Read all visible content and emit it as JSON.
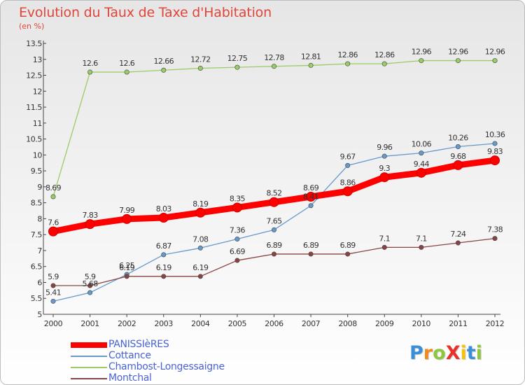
{
  "header": {
    "title": "Evolution du Taux de Taxe d'Habitation",
    "subtitle": "(en %)"
  },
  "logo": {
    "text": "ProXiti",
    "letter_colors": [
      "#3a8fd8",
      "#f08a1c",
      "#8dc63f",
      "#e8312a",
      "#f4c20d",
      "#3a8fd8",
      "#8dc63f"
    ]
  },
  "chart_data": {
    "type": "line",
    "title": "Evolution du Taux de Taxe d'Habitation",
    "ylabel": "(en %)",
    "xlabel": "",
    "x": [
      "2000",
      "2001",
      "2002",
      "2003",
      "2004",
      "2005",
      "2006",
      "2007",
      "2008",
      "2009",
      "2010",
      "2011",
      "2012"
    ],
    "ylim": [
      5,
      13.5
    ],
    "yticks": [
      "5",
      "5.5",
      "6",
      "6.5",
      "7",
      "7.5",
      "8",
      "8.5",
      "9",
      "9.5",
      "10",
      "10.5",
      "11",
      "11.5",
      "12",
      "12.5",
      "13",
      "13.5"
    ],
    "grid": false,
    "legend_position": "bottom-left",
    "series": [
      {
        "name": "PANISSIèRES",
        "color": "#ff0000",
        "emphasis": true,
        "values": [
          7.6,
          7.83,
          7.99,
          8.03,
          8.19,
          8.35,
          8.52,
          8.69,
          8.86,
          9.3,
          9.44,
          9.68,
          9.83
        ],
        "labels": [
          "7.6",
          "7.83",
          "7.99",
          "8.03",
          "8.19",
          "8.35",
          "8.52",
          "8.69",
          "8.86",
          "9.3",
          "9.44",
          "9.68",
          "9.83"
        ]
      },
      {
        "name": "Cottance",
        "color": "#6699cc",
        "values": [
          5.41,
          5.68,
          6.25,
          6.87,
          7.08,
          7.36,
          7.65,
          8.41,
          9.67,
          9.96,
          10.06,
          10.26,
          10.36
        ],
        "labels": [
          "5.41",
          "5.68",
          "6.25",
          "6.87",
          "7.08",
          "7.36",
          "7.65",
          "8.41",
          "9.67",
          "9.96",
          "10.06",
          "10.26",
          "10.36"
        ]
      },
      {
        "name": "Chambost-Longessaigne",
        "color": "#99cc66",
        "values": [
          8.69,
          12.6,
          12.6,
          12.66,
          12.72,
          12.75,
          12.78,
          12.81,
          12.86,
          12.86,
          12.96,
          12.96,
          12.96
        ],
        "labels": [
          "8.69",
          "12.6",
          "12.6",
          "12.66",
          "12.72",
          "12.75",
          "12.78",
          "12.81",
          "12.86",
          "12.86",
          "12.96",
          "12.96",
          "12.96"
        ]
      },
      {
        "name": "Montchal",
        "color": "#884444",
        "values": [
          5.9,
          5.9,
          6.19,
          6.19,
          6.19,
          6.69,
          6.89,
          6.89,
          6.89,
          7.1,
          7.1,
          7.24,
          7.38
        ],
        "labels": [
          "5.9",
          "5.9",
          "6.19",
          "6.19",
          "6.19",
          "6.69",
          "6.89",
          "6.89",
          "6.89",
          "7.1",
          "7.1",
          "7.24",
          "7.38"
        ]
      }
    ]
  }
}
